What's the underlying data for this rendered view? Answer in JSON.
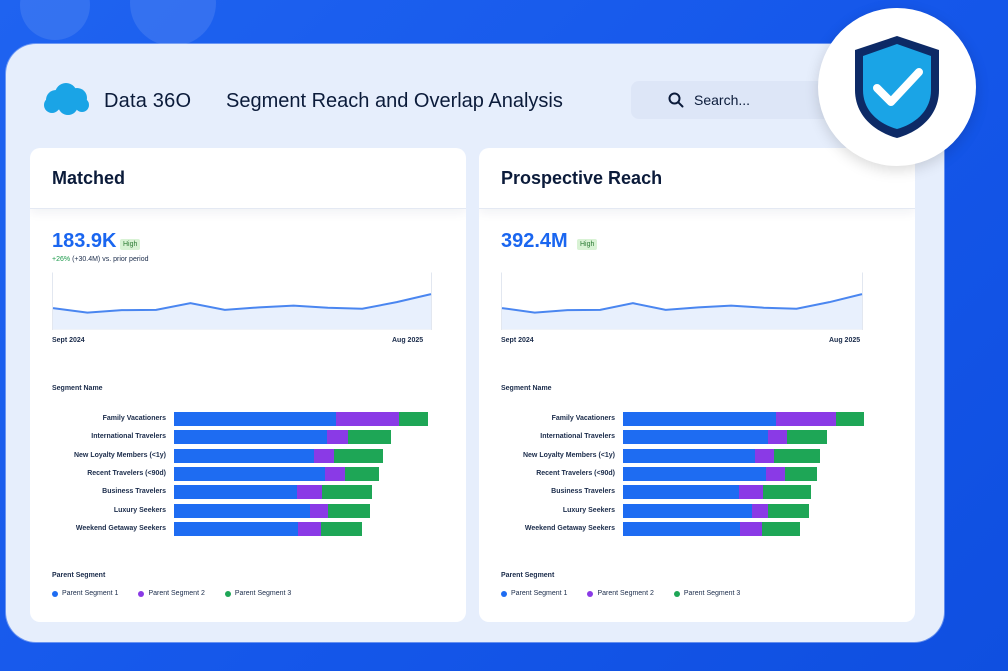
{
  "app": {
    "brand": "Data 36O",
    "title": "Segment Reach and Overlap Analysis",
    "search_placeholder": "Search..."
  },
  "colors": {
    "segment1": "#1e6cf2",
    "segment2": "#8a3ae6",
    "segment3": "#1ea656",
    "metric": "#1a66f0",
    "sparkline": "#4a86f0"
  },
  "cards": [
    {
      "title": "Matched",
      "metric": "183.9K",
      "badge": "High",
      "change_pct": "+26%",
      "change_text": "(+30.4M) vs. prior period",
      "axis_start": "Sept 2024",
      "axis_end": "Aug 2025",
      "spark": [
        0.38,
        0.25,
        0.32,
        0.33,
        0.52,
        0.33,
        0.4,
        0.45,
        0.39,
        0.36,
        0.55,
        0.78
      ],
      "segment_header": "Segment Name",
      "legend_header": "Parent Segment",
      "legend": [
        "Parent Segment 1",
        "Parent Segment 2",
        "Parent Segment 3"
      ],
      "rows": [
        {
          "name": "Family Vacationers",
          "values": [
            162,
            63,
            29
          ]
        },
        {
          "name": "International Travelers",
          "values": [
            153,
            21,
            43
          ]
        },
        {
          "name": "New Loyalty Members (<1y)",
          "values": [
            140,
            20,
            49
          ]
        },
        {
          "name": "Recent Travelers (<90d)",
          "values": [
            151,
            20,
            34
          ]
        },
        {
          "name": "Business Travelers",
          "values": [
            123,
            25,
            50
          ]
        },
        {
          "name": "Luxury Seekers",
          "values": [
            136,
            18,
            42
          ]
        },
        {
          "name": "Weekend Getaway Seekers",
          "values": [
            124,
            23,
            41
          ]
        }
      ]
    },
    {
      "title": "Prospective Reach",
      "metric": "392.4M",
      "badge": "High",
      "change_pct": "",
      "change_text": "",
      "axis_start": "Sept 2024",
      "axis_end": "Aug 2025",
      "spark": [
        0.38,
        0.25,
        0.32,
        0.33,
        0.52,
        0.33,
        0.4,
        0.45,
        0.39,
        0.36,
        0.55,
        0.78
      ],
      "segment_header": "Segment Name",
      "legend_header": "Parent Segment",
      "legend": [
        "Parent Segment 1",
        "Parent Segment 2",
        "Parent Segment 3"
      ],
      "rows": [
        {
          "name": "Family Vacationers",
          "values": [
            153,
            60,
            28
          ]
        },
        {
          "name": "International Travelers",
          "values": [
            145,
            19,
            40
          ]
        },
        {
          "name": "New Loyalty Members (<1y)",
          "values": [
            132,
            19,
            46
          ]
        },
        {
          "name": "Recent Travelers (<90d)",
          "values": [
            143,
            19,
            32
          ]
        },
        {
          "name": "Business Travelers",
          "values": [
            116,
            24,
            48
          ]
        },
        {
          "name": "Luxury Seekers",
          "values": [
            129,
            16,
            41
          ]
        },
        {
          "name": "Weekend Getaway Seekers",
          "values": [
            117,
            22,
            38
          ]
        }
      ]
    }
  ]
}
